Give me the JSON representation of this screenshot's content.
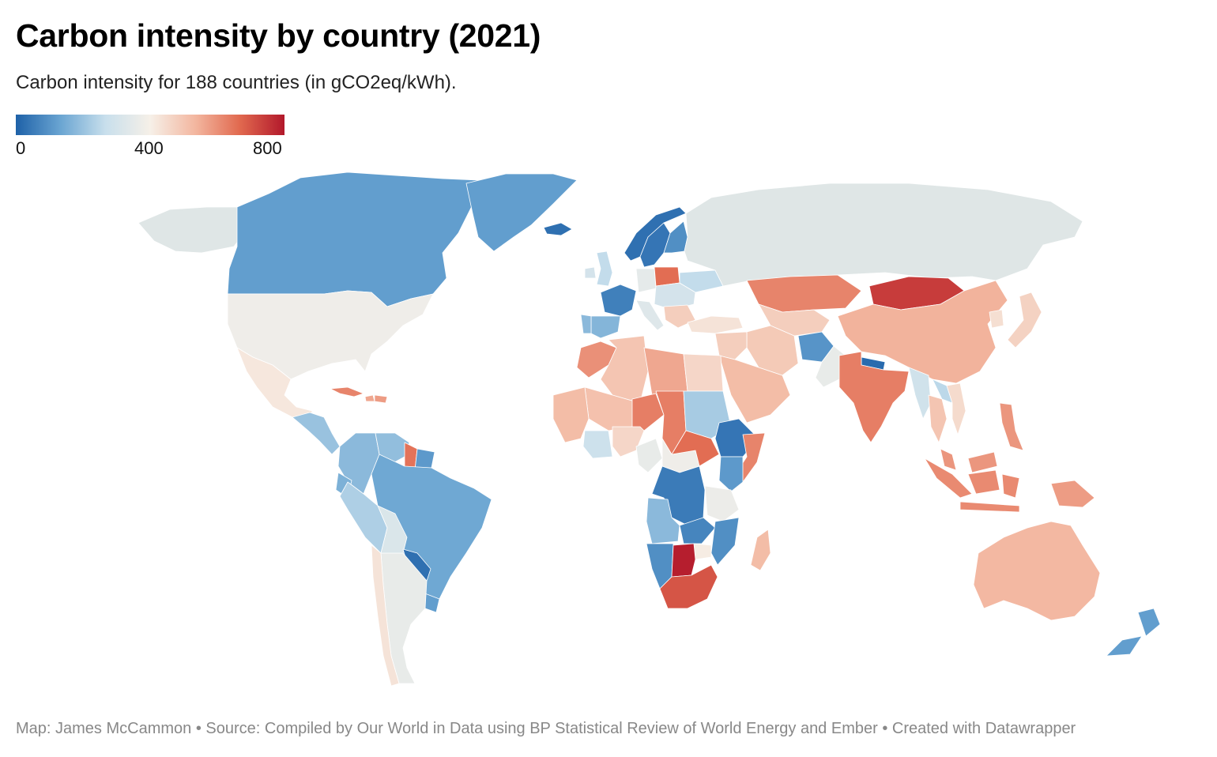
{
  "header": {
    "title": "Carbon intensity by country (2021)",
    "subtitle": "Carbon intensity for 188 countries (in gCO2eq/kWh)."
  },
  "legend": {
    "min": 0,
    "max": 800,
    "ticks": [
      "0",
      "400",
      "800"
    ],
    "colors": [
      "#1e61a8",
      "#6aa5d2",
      "#c8dfec",
      "#f6f0e8",
      "#f3b7a0",
      "#e1694f",
      "#b2182b"
    ]
  },
  "footer": {
    "text": "Map: James McCammon • Source: Compiled by Our World in Data using BP Statistical Review of World Energy and Ember • Created with Datawrapper"
  },
  "colors": {
    "no_data": "#dfe6e6",
    "border": "#ffffff"
  },
  "chart_data": {
    "type": "choropleth",
    "title": "Carbon intensity by country (2021)",
    "unit": "gCO2eq/kWh",
    "scale": [
      0,
      800
    ],
    "regions": [
      {
        "name": "Canada",
        "value": 120
      },
      {
        "name": "Greenland",
        "value": 120
      },
      {
        "name": "Alaska",
        "value": null
      },
      {
        "name": "United States",
        "value": 380
      },
      {
        "name": "Mexico",
        "value": 420
      },
      {
        "name": "Central America",
        "value": 200
      },
      {
        "name": "Cuba",
        "value": 620
      },
      {
        "name": "Haiti",
        "value": 560
      },
      {
        "name": "Dominican Republic",
        "value": 580
      },
      {
        "name": "Colombia",
        "value": 180
      },
      {
        "name": "Venezuela",
        "value": 190
      },
      {
        "name": "Guyana",
        "value": 650
      },
      {
        "name": "Suriname",
        "value": 110
      },
      {
        "name": "Ecuador",
        "value": 160
      },
      {
        "name": "Peru",
        "value": 230
      },
      {
        "name": "Brazil",
        "value": 140
      },
      {
        "name": "Bolivia",
        "value": 320
      },
      {
        "name": "Paraguay",
        "value": 30
      },
      {
        "name": "Uruguay",
        "value": 120
      },
      {
        "name": "Argentina",
        "value": 360
      },
      {
        "name": "Chile",
        "value": 430
      },
      {
        "name": "Iceland",
        "value": 30
      },
      {
        "name": "Norway",
        "value": 30
      },
      {
        "name": "Sweden",
        "value": 40
      },
      {
        "name": "Finland",
        "value": 90
      },
      {
        "name": "United Kingdom",
        "value": 260
      },
      {
        "name": "Ireland",
        "value": 300
      },
      {
        "name": "France",
        "value": 60
      },
      {
        "name": "Spain",
        "value": 170
      },
      {
        "name": "Portugal",
        "value": 180
      },
      {
        "name": "Germany",
        "value": 350
      },
      {
        "name": "Italy",
        "value": 330
      },
      {
        "name": "Poland",
        "value": 660
      },
      {
        "name": "Eastern Europe",
        "value": 300
      },
      {
        "name": "Balkans",
        "value": 480
      },
      {
        "name": "Ukraine",
        "value": 260
      },
      {
        "name": "Russia",
        "value": null
      },
      {
        "name": "Turkey",
        "value": 430
      },
      {
        "name": "Kazakhstan",
        "value": 620
      },
      {
        "name": "Mongolia",
        "value": 740
      },
      {
        "name": "China",
        "value": 540
      },
      {
        "name": "Korea",
        "value": 440
      },
      {
        "name": "Japan",
        "value": 470
      },
      {
        "name": "Central Asia",
        "value": 480
      },
      {
        "name": "Iran",
        "value": 490
      },
      {
        "name": "Middle East",
        "value": 480
      },
      {
        "name": "Arabian Peninsula",
        "value": 520
      },
      {
        "name": "Afghanistan",
        "value": 100
      },
      {
        "name": "Pakistan",
        "value": 360
      },
      {
        "name": "Nepal",
        "value": 20
      },
      {
        "name": "India",
        "value": 630
      },
      {
        "name": "Myanmar",
        "value": 290
      },
      {
        "name": "Thailand",
        "value": 500
      },
      {
        "name": "Laos",
        "value": 250
      },
      {
        "name": "Vietnam",
        "value": 450
      },
      {
        "name": "Philippines",
        "value": 590
      },
      {
        "name": "Malaysia",
        "value": 590
      },
      {
        "name": "Indonesia",
        "value": 610
      },
      {
        "name": "Papua New Guinea",
        "value": 580
      },
      {
        "name": "Australia",
        "value": 530
      },
      {
        "name": "New Zealand",
        "value": 120
      },
      {
        "name": "Morocco",
        "value": 600
      },
      {
        "name": "Algeria",
        "value": 500
      },
      {
        "name": "Libya",
        "value": 560
      },
      {
        "name": "Egypt",
        "value": 460
      },
      {
        "name": "Mali",
        "value": 510
      },
      {
        "name": "Niger",
        "value": 630
      },
      {
        "name": "Chad",
        "value": 630
      },
      {
        "name": "Sudan",
        "value": 220
      },
      {
        "name": "South Sudan",
        "value": 660
      },
      {
        "name": "Ethiopia",
        "value": 40
      },
      {
        "name": "Somalia",
        "value": 620
      },
      {
        "name": "Kenya",
        "value": 110
      },
      {
        "name": "Nigeria",
        "value": 460
      },
      {
        "name": "West Africa",
        "value": 520
      },
      {
        "name": "Ghana",
        "value": 280
      },
      {
        "name": "Cameroon",
        "value": 360
      },
      {
        "name": "Central African Republic",
        "value": 380
      },
      {
        "name": "DR Congo",
        "value": 50
      },
      {
        "name": "Tanzania",
        "value": 370
      },
      {
        "name": "Angola",
        "value": 180
      },
      {
        "name": "Zambia",
        "value": 70
      },
      {
        "name": "Mozambique",
        "value": 90
      },
      {
        "name": "Namibia",
        "value": 90
      },
      {
        "name": "Botswana",
        "value": 790
      },
      {
        "name": "Zimbabwe",
        "value": 410
      },
      {
        "name": "South Africa",
        "value": 700
      },
      {
        "name": "Madagascar",
        "value": 520
      }
    ]
  }
}
